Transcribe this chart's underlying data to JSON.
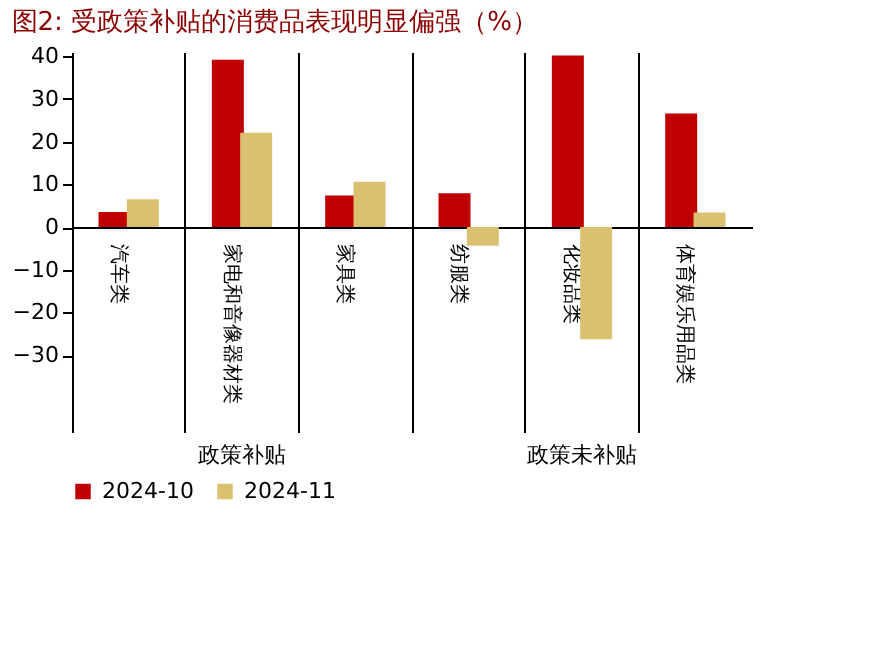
{
  "chart_data": {
    "type": "bar",
    "title": "图2:  受政策补贴的消费品表现明显偏强（%）",
    "categories": [
      "汽车类",
      "家电和音像器材类",
      "家具类",
      "纺服类",
      "化妆品类",
      "体育娱乐用品类"
    ],
    "series": [
      {
        "name": "2024-10",
        "color": "#c00000",
        "values": [
          3.5,
          39.2,
          7.4,
          7.9,
          40.2,
          26.6
        ]
      },
      {
        "name": "2024-11",
        "color": "#dcc072",
        "values": [
          6.5,
          22.1,
          10.6,
          -4.4,
          -26.3,
          3.4
        ]
      }
    ],
    "ylim": [
      -48,
      41
    ],
    "yticks": [
      40,
      30,
      20,
      10,
      0,
      -10,
      -20,
      -30
    ],
    "annotations": [
      "政策补贴",
      "政策未补贴"
    ],
    "grid": false,
    "legend": "bottom"
  }
}
